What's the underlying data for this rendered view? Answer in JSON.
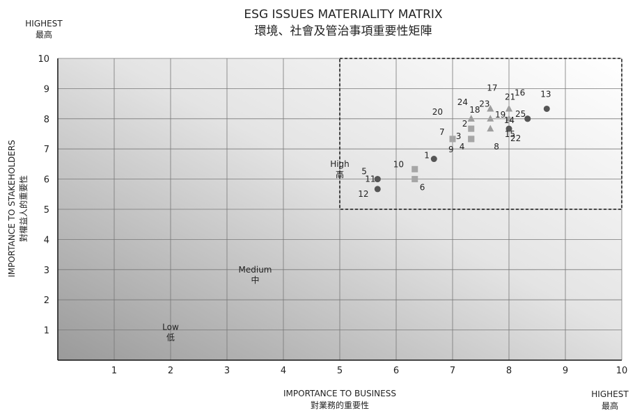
{
  "chart_data": {
    "type": "scatter",
    "title": "ESG ISSUES MATERIALITY MATRIX",
    "subtitle": "環境、社會及管治事項重要性矩陣",
    "xlabel": "IMPORTANCE TO BUSINESS",
    "xlabel_zh": "對業務的重要性",
    "ylabel": "IMPORTANCE TO STAKEHOLDERS",
    "ylabel_zh": "對權益人的重要性",
    "xlim": [
      0,
      10
    ],
    "ylim": [
      0,
      10
    ],
    "x_ticks": [
      "1",
      "2",
      "3",
      "4",
      "5",
      "6",
      "7",
      "8",
      "9",
      "10"
    ],
    "y_ticks": [
      "1",
      "2",
      "3",
      "4",
      "5",
      "6",
      "7",
      "8",
      "9",
      "10"
    ],
    "highest_y_label": {
      "en": "HIGHEST",
      "zh": "最高"
    },
    "highest_x_label": {
      "en": "HIGHEST",
      "zh": "最高"
    },
    "zone_labels": [
      {
        "en": "Low",
        "zh": "低",
        "x": 2.0,
        "y": 1.0
      },
      {
        "en": "Medium",
        "zh": "中",
        "x": 3.5,
        "y": 2.9
      },
      {
        "en": "High",
        "zh": "高",
        "x": 5.0,
        "y": 6.4
      }
    ],
    "highlight_region": {
      "x": [
        5,
        10
      ],
      "y": [
        5,
        10
      ]
    },
    "grid": true,
    "series": [
      {
        "marker": "circle",
        "color": "#555555",
        "points": [
          {
            "id": "1",
            "x": 6.67,
            "y": 6.67
          },
          {
            "id": "5",
            "x": 5.67,
            "y": 6.0
          },
          {
            "id": "11",
            "x": 5.67,
            "y": 6.0
          },
          {
            "id": "12",
            "x": 5.67,
            "y": 5.67
          },
          {
            "id": "13",
            "x": 8.67,
            "y": 8.33
          },
          {
            "id": "14",
            "x": 8.33,
            "y": 8.0
          },
          {
            "id": "15",
            "x": 8.33,
            "y": 8.0
          },
          {
            "id": "22",
            "x": 8.0,
            "y": 7.67
          }
        ]
      },
      {
        "marker": "square",
        "color": "#a6a6a6",
        "points": [
          {
            "id": "10",
            "x": 6.33,
            "y": 6.33
          },
          {
            "id": "6",
            "x": 6.33,
            "y": 6.0
          },
          {
            "id": "7",
            "x": 7.0,
            "y": 7.33
          },
          {
            "id": "9",
            "x": 7.0,
            "y": 7.33
          },
          {
            "id": "3",
            "x": 7.33,
            "y": 7.33
          },
          {
            "id": "4",
            "x": 7.33,
            "y": 7.33
          },
          {
            "id": "2",
            "x": 7.33,
            "y": 7.67
          }
        ]
      },
      {
        "marker": "triangle",
        "color": "#9e9e9e",
        "points": [
          {
            "id": "24",
            "x": 7.33,
            "y": 8.0
          },
          {
            "id": "20",
            "x": 7.33,
            "y": 8.0
          },
          {
            "id": "18",
            "x": 7.67,
            "y": 8.0
          },
          {
            "id": "23",
            "x": 7.67,
            "y": 8.33
          },
          {
            "id": "17",
            "x": 7.67,
            "y": 8.33
          },
          {
            "id": "8",
            "x": 7.67,
            "y": 7.67
          },
          {
            "id": "21",
            "x": 8.0,
            "y": 8.33
          },
          {
            "id": "16",
            "x": 8.0,
            "y": 8.33
          },
          {
            "id": "19",
            "x": 8.0,
            "y": 8.0
          },
          {
            "id": "25",
            "x": 8.0,
            "y": 8.0
          }
        ]
      }
    ]
  }
}
